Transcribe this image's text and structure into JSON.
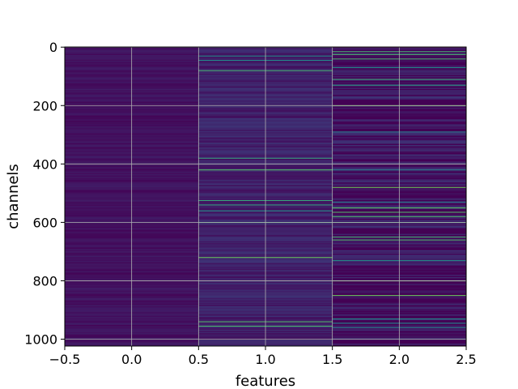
{
  "chart_data": {
    "type": "heatmap",
    "title": "",
    "xlabel": "features",
    "ylabel": "channels",
    "xlim": [
      -0.5,
      2.5
    ],
    "ylim": [
      1023.5,
      -0.5
    ],
    "y_inverted": true,
    "grid": true,
    "colormap": "viridis",
    "x_ticks": [
      -0.5,
      0.0,
      0.5,
      1.0,
      1.5,
      2.0,
      2.5
    ],
    "x_tick_labels": [
      "−0.5",
      "0.0",
      "0.5",
      "1.0",
      "1.5",
      "2.0",
      "2.5"
    ],
    "y_ticks": [
      0,
      200,
      400,
      600,
      800,
      1000
    ],
    "y_tick_labels": [
      "0",
      "200",
      "400",
      "600",
      "800",
      "1000"
    ],
    "n_rows": 1024,
    "columns": [
      {
        "feature": 0,
        "base_level": 0.05,
        "variation": 0.04,
        "bright_rows": []
      },
      {
        "feature": 1,
        "base_level": 0.1,
        "variation": 0.06,
        "bright_rows": [
          30,
          45,
          80,
          380,
          420,
          525,
          540,
          560,
          600,
          720,
          940,
          955
        ]
      },
      {
        "feature": 2,
        "base_level": 0.04,
        "variation": 0.12,
        "bright_rows": [
          15,
          25,
          40,
          70,
          110,
          130,
          200,
          290,
          420,
          480,
          530,
          550,
          565,
          580,
          600,
          650,
          660,
          730,
          800,
          850,
          930,
          945,
          960
        ]
      }
    ]
  }
}
